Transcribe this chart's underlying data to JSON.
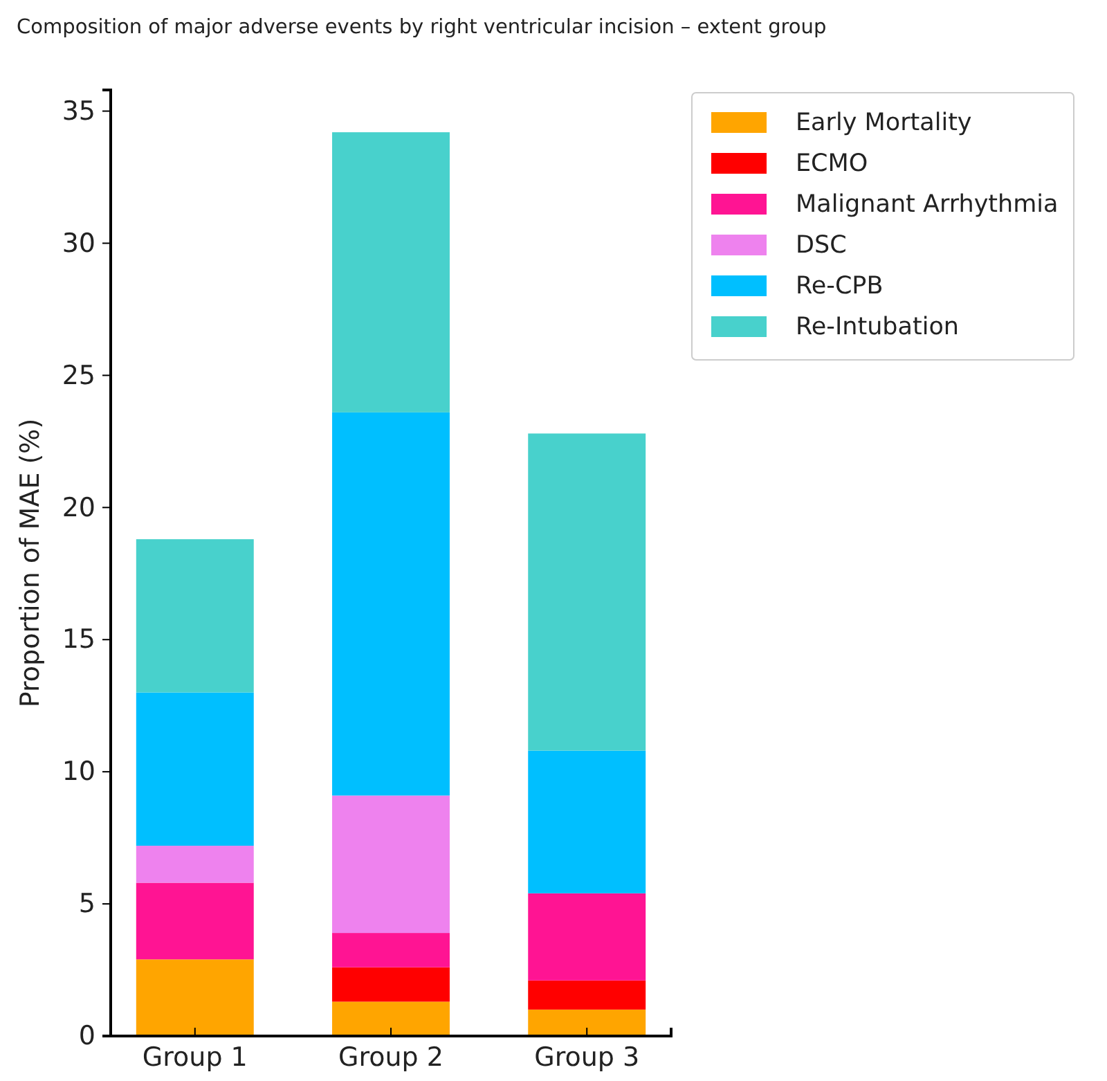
{
  "chart_data": {
    "type": "bar",
    "title": "Composition of major adverse events by right ventricular incision – extent group",
    "ylabel": "Proportion of MAE (%)",
    "categories": [
      "Group 1",
      "Group 2",
      "Group 3"
    ],
    "stacked": true,
    "ylim": [
      0,
      35.8
    ],
    "yticks": [
      0,
      5,
      10,
      15,
      20,
      25,
      30,
      35
    ],
    "grid": false,
    "legend": "top right",
    "series": [
      {
        "name": "Early Mortality",
        "color": "#ffa500",
        "values": [
          2.9,
          1.3,
          1.0
        ]
      },
      {
        "name": "ECMO",
        "color": "#ff0000",
        "values": [
          0,
          1.3,
          1.1
        ]
      },
      {
        "name": "Malignant Arrhythmia",
        "color": "#ff1493",
        "values": [
          2.9,
          1.3,
          3.3
        ]
      },
      {
        "name": "DSC",
        "color": "#ee82ee",
        "values": [
          1.4,
          5.2,
          0
        ]
      },
      {
        "name": "Re-CPB",
        "color": "#00bfff",
        "values": [
          5.8,
          14.5,
          5.4
        ]
      },
      {
        "name": "Re-Intubation",
        "color": "#48d1cc",
        "values": [
          5.8,
          10.6,
          12.0
        ]
      }
    ]
  }
}
